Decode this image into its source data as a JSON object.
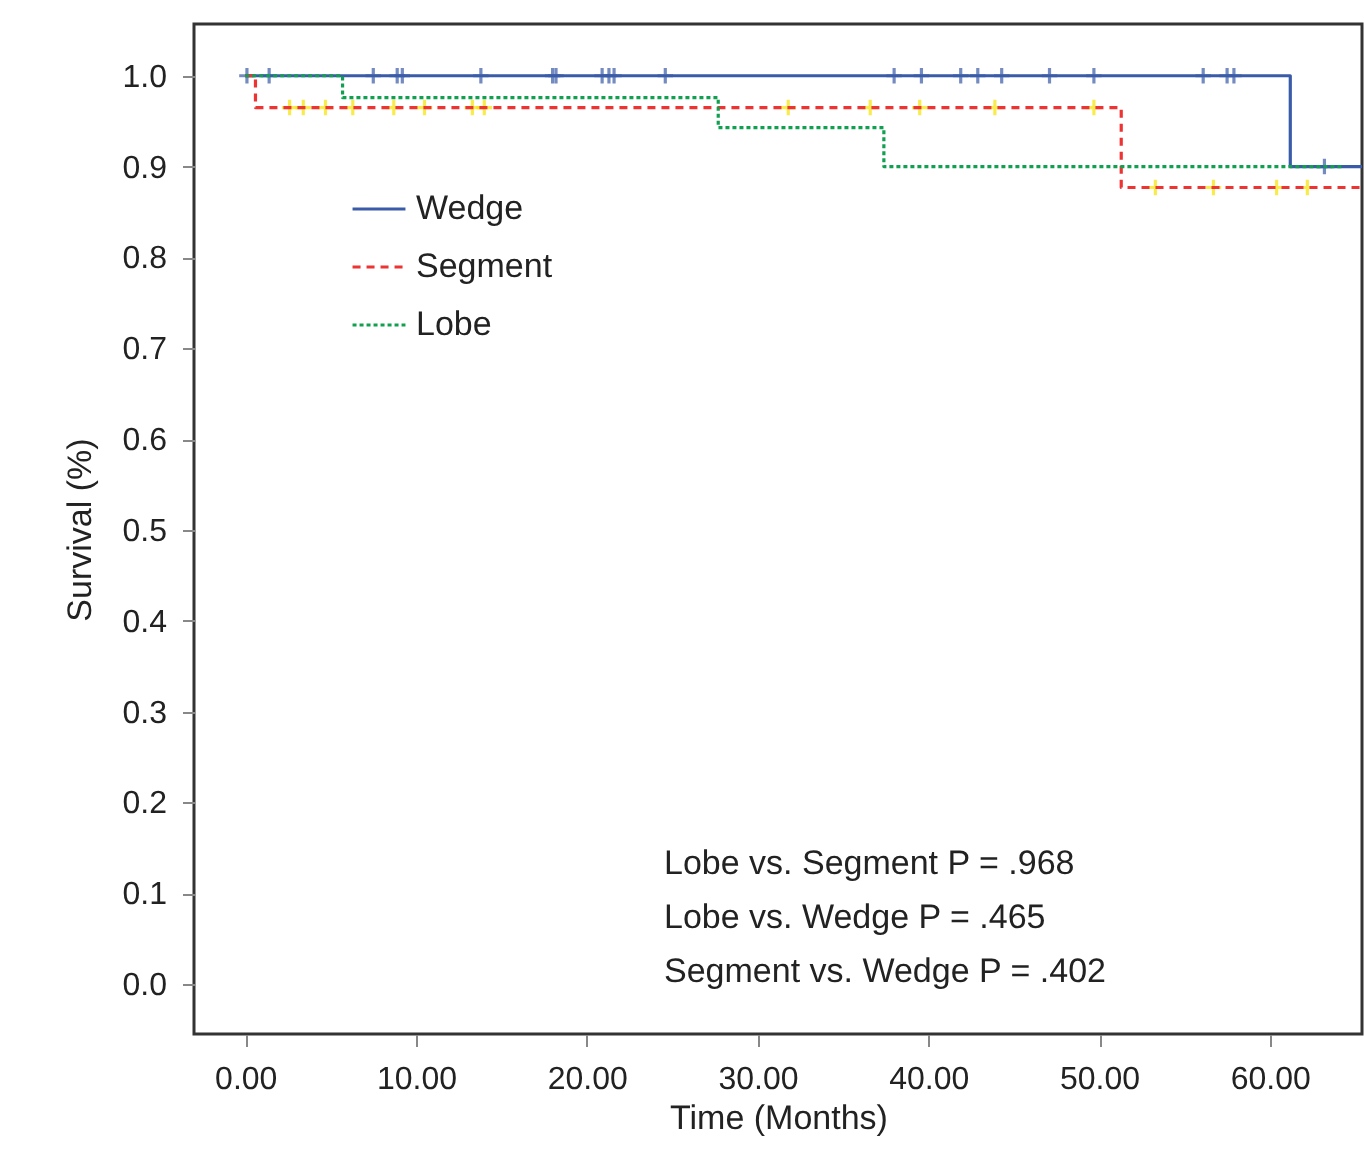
{
  "chart_data": {
    "type": "step",
    "xlabel": "Time (Months)",
    "ylabel": "Survival (%)",
    "xlim": [
      -3,
      65.4
    ],
    "ylim": [
      -0.055,
      1.057
    ],
    "xticks": [
      {
        "value": 0,
        "label": "0.00"
      },
      {
        "value": 10,
        "label": "10.00"
      },
      {
        "value": 20,
        "label": "20.00"
      },
      {
        "value": 30,
        "label": "30.00"
      },
      {
        "value": 40,
        "label": "40.00"
      },
      {
        "value": 50,
        "label": "50.00"
      },
      {
        "value": 60,
        "label": "60.00"
      }
    ],
    "yticks": [
      {
        "value": 0,
        "label": "0.0"
      },
      {
        "value": 0.1,
        "label": "0.1"
      },
      {
        "value": 0.2,
        "label": "0.2"
      },
      {
        "value": 0.3,
        "label": "0.3"
      },
      {
        "value": 0.4,
        "label": "0.4"
      },
      {
        "value": 0.5,
        "label": "0.5"
      },
      {
        "value": 0.6,
        "label": "0.6"
      },
      {
        "value": 0.7,
        "label": "0.7"
      },
      {
        "value": 0.8,
        "label": "0.8"
      },
      {
        "value": 0.9,
        "label": "0.9"
      },
      {
        "value": 1.0,
        "label": "1.0"
      }
    ],
    "grid": false,
    "legend": "top left",
    "series": [
      {
        "name": "Wedge",
        "color": "#3a5ba8",
        "line_style": "solid",
        "x": [
          0,
          61.2,
          65.4
        ],
        "values": [
          1,
          0.9,
          0.9
        ]
      },
      {
        "name": "Segment",
        "color": "#ee3333",
        "line_style": "dashed",
        "x": [
          0,
          0.6,
          51.3,
          65.4
        ],
        "values": [
          1,
          0.965,
          0.877,
          0.877
        ]
      },
      {
        "name": "Lobe",
        "color": "#11a050",
        "line_style": "dotted",
        "x": [
          0,
          5.7,
          27.7,
          37.4,
          64.2
        ],
        "values": [
          1,
          0.976,
          0.943,
          0.9,
          0.9
        ]
      },
      {
        "type": "scatter",
        "color": "#3a5ba8",
        "marker": "cross",
        "x": [
          0.1,
          1.4,
          7.5,
          8.9,
          9.2,
          13.8,
          18.0,
          18.2,
          20.9,
          21.3,
          21.6,
          24.6,
          38.0,
          39.6,
          41.9,
          42.9,
          44.3,
          47.1,
          49.7,
          56.1,
          57.5,
          57.9,
          63.2
        ],
        "values": [
          1,
          1,
          1,
          1,
          1,
          1,
          1,
          1,
          1,
          1,
          1,
          1,
          1,
          1,
          1,
          1,
          1,
          1,
          1,
          1,
          1,
          1,
          0.9
        ]
      },
      {
        "type": "scatter",
        "color": "#f5e400",
        "marker": "cross",
        "x": [
          2.6,
          3.4,
          4.7,
          6.3,
          8.7,
          10.5,
          13.3,
          14.0,
          31.8,
          36.6,
          39.5,
          43.9,
          49.7,
          53.3,
          56.7,
          60.4,
          62.2
        ],
        "values": [
          0.965,
          0.965,
          0.965,
          0.965,
          0.965,
          0.965,
          0.965,
          0.965,
          0.965,
          0.965,
          0.965,
          0.965,
          0.965,
          0.877,
          0.877,
          0.877,
          0.877
        ]
      }
    ],
    "annotations": [
      "Lobe vs. Segment      P = .968",
      "Lobe vs. Wedge         P = .465",
      "Segment vs. Wedge   P = .402"
    ]
  }
}
